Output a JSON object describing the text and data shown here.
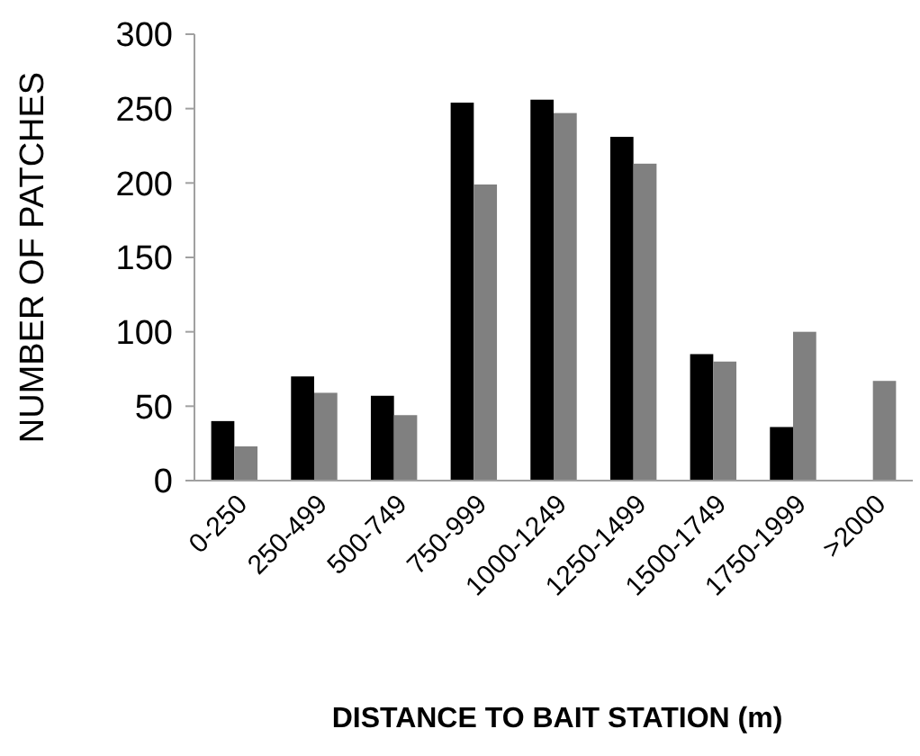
{
  "chart_data": {
    "type": "bar",
    "xlabel": "DISTANCE TO BAIT STATION (m)",
    "ylabel": "NUMBER OF PATCHES",
    "categories": [
      "0-250",
      "250-499",
      "500-749",
      "750-999",
      "1000-1249",
      "1250-1499",
      "1500-1749",
      "1750-1999",
      ">2000"
    ],
    "series": [
      {
        "color": "#000000",
        "values": [
          40,
          70,
          57,
          254,
          256,
          231,
          85,
          36,
          0
        ]
      },
      {
        "color": "#808080",
        "values": [
          23,
          59,
          44,
          199,
          247,
          213,
          80,
          100,
          67
        ]
      }
    ],
    "ylim": [
      0,
      300
    ],
    "yticks": [
      0,
      50,
      100,
      150,
      200,
      250,
      300
    ],
    "grid": false
  }
}
